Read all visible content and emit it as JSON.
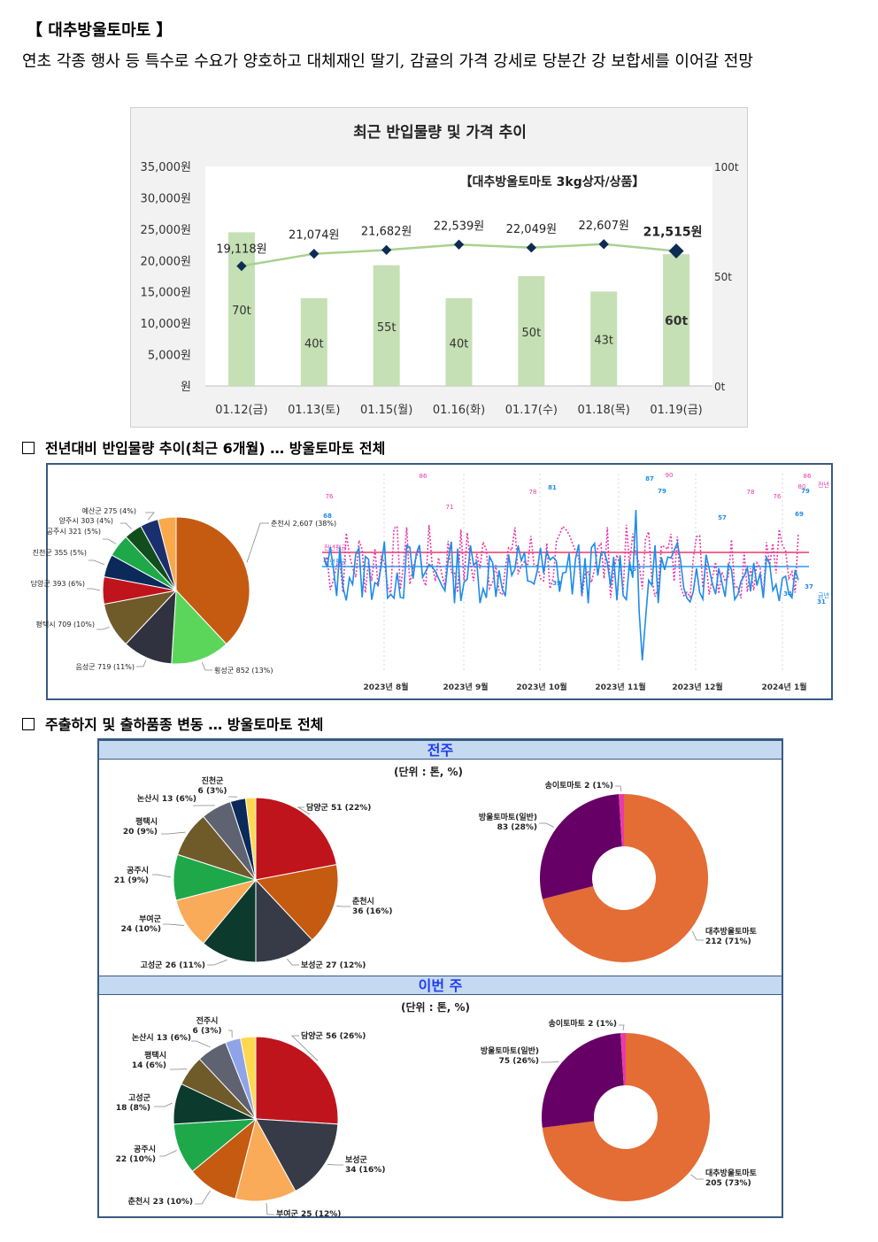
{
  "heading": "【 대추방울토마토 】",
  "description": "연초 각종 행사 등 특수로 수요가 양호하고 대체재인 딸기, 감귤의 가격 강세로 당분간 강 보합세를 이어갈 전망",
  "colors": {
    "bar": "#c5e0b4",
    "price_line": "#a9d18e",
    "price_marker": "#0d2c54",
    "last_year_series": "#e83aa8",
    "this_year_series": "#1f8be8",
    "band_bg": "#c5d9f1",
    "band_text": "#1f3df0"
  },
  "chart1": {
    "chart_data": {
      "type": "bar+line",
      "title": "최근 반입물량 및 가격 추이",
      "annotation": "【대추방울토마토 3kg상자/상품】",
      "categories": [
        "01.12(금)",
        "01.13(토)",
        "01.15(월)",
        "01.16(화)",
        "01.17(수)",
        "01.18(목)",
        "01.19(금)"
      ],
      "volume_tons": [
        70,
        40,
        55,
        40,
        50,
        43,
        60
      ],
      "volume_labels": [
        "70t",
        "40t",
        "55t",
        "40t",
        "50t",
        "43t",
        "60t"
      ],
      "price_won": [
        19118,
        21074,
        21682,
        22539,
        22049,
        22607,
        21515
      ],
      "price_labels": [
        "19,118원",
        "21,074원",
        "21,682원",
        "22,539원",
        "22,049원",
        "22,607원",
        "21,515원"
      ],
      "y_left_ticks": [
        "원",
        "5,000원",
        "10,000원",
        "15,000원",
        "20,000원",
        "25,000원",
        "30,000원",
        "35,000원"
      ],
      "y_left_range": [
        0,
        35000
      ],
      "y_right_ticks": [
        "0t",
        "50t",
        "100t"
      ],
      "y_right_range": [
        0,
        100
      ]
    }
  },
  "section2": {
    "title": "전년대비 반입물량 추이(최근 6개월) … 방울토마토 전체",
    "pie": {
      "type": "pie",
      "slices": [
        {
          "label": "춘천시 2,607 (38%)",
          "value": 38,
          "color": "#c55a11"
        },
        {
          "label": "횡성군 852 (13%)",
          "value": 13,
          "color": "#5bd65b"
        },
        {
          "label": "음성군 719 (11%)",
          "value": 11,
          "color": "#30323f"
        },
        {
          "label": "평택시 709 (10%)",
          "value": 10,
          "color": "#6f5a2a"
        },
        {
          "label": "담양군 393 (6%)",
          "value": 6,
          "color": "#c0141c"
        },
        {
          "label": "진천군 355 (5%)",
          "value": 5,
          "color": "#0b2a5a"
        },
        {
          "label": "공주시 321 (5%)",
          "value": 5,
          "color": "#1ea84a"
        },
        {
          "label": "양주시 303 (4%)",
          "value": 4,
          "color": "#124d1e"
        },
        {
          "label": "예산군 275 (4%)",
          "value": 4,
          "color": "#1a2f6e"
        },
        {
          "label": "",
          "value": 4,
          "color": "#f9a94b"
        }
      ]
    },
    "line": {
      "type": "line",
      "months": [
        "2023년 8월",
        "2023년 9월",
        "2023년 10월",
        "2023년 11월",
        "2023년 12월",
        "2024년 1월"
      ],
      "last_year_name": "전년",
      "this_year_name": "금년",
      "avg_last_label": "전년평균",
      "avg_this_label": "금년평균",
      "last_year_labels": [
        "76",
        "86",
        "71",
        "78",
        "90",
        "78",
        "76",
        "80",
        "86"
      ],
      "this_year_labels": [
        "68",
        "81",
        "87",
        "79",
        "57",
        "79",
        "69",
        "39",
        "46",
        "34",
        "31",
        "37"
      ]
    }
  },
  "section3": {
    "title": "주출하지 및 출하품종 변동 … 방울토마토 전체",
    "unit_label": "(단위 : 톤, %)",
    "prev_week": {
      "band": "전주",
      "origins": [
        {
          "label": "담양군 51 (22%)",
          "value": 22,
          "color": "#c0141c"
        },
        {
          "label": "춘천시\n36 (16%)",
          "value": 16,
          "color": "#c55a11"
        },
        {
          "label": "보성군 27 (12%)",
          "value": 12,
          "color": "#373b47"
        },
        {
          "label": "고성군 26 (11%)",
          "value": 11,
          "color": "#0c3b2e"
        },
        {
          "label": "부여군\n24 (10%)",
          "value": 10,
          "color": "#f9ab5a"
        },
        {
          "label": "공주시\n21 (9%)",
          "value": 9,
          "color": "#1ea84a"
        },
        {
          "label": "평택시\n20 (9%)",
          "value": 9,
          "color": "#6f5a2a"
        },
        {
          "label": "논산시 13 (6%)",
          "value": 6,
          "color": "#5f6371"
        },
        {
          "label": "진천군\n6 (3%)",
          "value": 3,
          "color": "#0b2a5a"
        },
        {
          "label": "",
          "value": 2,
          "color": "#ffd84f"
        }
      ],
      "varieties": [
        {
          "label": "대추방울토마토\n212 (71%)",
          "value": 71,
          "color": "#e46c35"
        },
        {
          "label": "방울토마토(일반)\n83 (28%)",
          "value": 28,
          "color": "#660066"
        },
        {
          "label": "송이토마토 2 (1%)",
          "value": 1,
          "color": "#e83aa8"
        }
      ]
    },
    "this_week": {
      "band": "이번 주",
      "origins": [
        {
          "label": "담양군 56 (26%)",
          "value": 26,
          "color": "#c0141c"
        },
        {
          "label": "보성군\n34 (16%)",
          "value": 16,
          "color": "#373b47"
        },
        {
          "label": "부여군 25 (12%)",
          "value": 12,
          "color": "#f9ab5a"
        },
        {
          "label": "춘천시 23 (10%)",
          "value": 10,
          "color": "#c55a11"
        },
        {
          "label": "공주시\n22 (10%)",
          "value": 10,
          "color": "#1ea84a"
        },
        {
          "label": "고성군\n18 (8%)",
          "value": 8,
          "color": "#0c3b2e"
        },
        {
          "label": "평택시\n14 (6%)",
          "value": 6,
          "color": "#6f5a2a"
        },
        {
          "label": "논산시 13 (6%)",
          "value": 6,
          "color": "#5f6371"
        },
        {
          "label": "전주시\n6 (3%)",
          "value": 3,
          "color": "#8fa4e8"
        },
        {
          "label": "",
          "value": 3,
          "color": "#ffd84f"
        }
      ],
      "varieties": [
        {
          "label": "대추방울토마토\n205 (73%)",
          "value": 73,
          "color": "#e46c35"
        },
        {
          "label": "방울토마토(일반)\n75 (26%)",
          "value": 26,
          "color": "#660066"
        },
        {
          "label": "송이토마토 2 (1%)",
          "value": 1,
          "color": "#e83aa8"
        }
      ]
    }
  }
}
